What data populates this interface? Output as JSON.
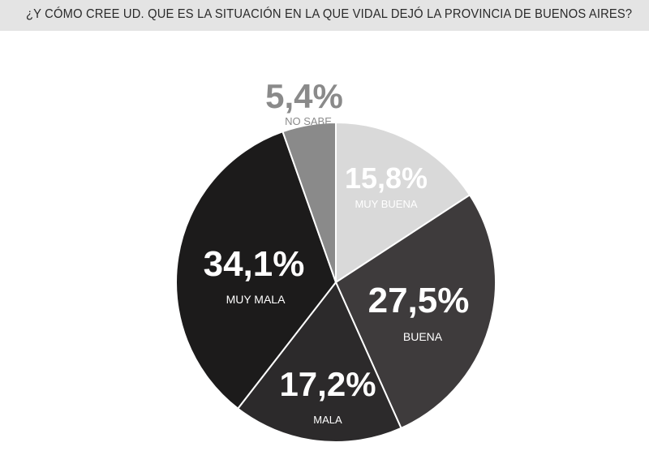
{
  "header": {
    "title": "¿Y CÓMO CREE UD. QUE ES LA SITUACIÓN EN LA QUE VIDAL DEJÓ LA PROVINCIA DE BUENOS AIRES?"
  },
  "chart_data": {
    "type": "pie",
    "title": "¿Y CÓMO CREE UD. QUE ES LA SITUACIÓN EN LA QUE VIDAL DEJÓ LA PROVINCIA DE BUENOS AIRES?",
    "slices": [
      {
        "label": "MUY BUENA",
        "value": 15.8,
        "value_text": "15,8%",
        "color": "#d9d9d9",
        "text_color": "#ffffff"
      },
      {
        "label": "BUENA",
        "value": 27.5,
        "value_text": "27,5%",
        "color": "#3e3b3c",
        "text_color": "#ffffff"
      },
      {
        "label": "MALA",
        "value": 17.2,
        "value_text": "17,2%",
        "color": "#2c2a2b",
        "text_color": "#ffffff"
      },
      {
        "label": "MUY MALA",
        "value": 34.1,
        "value_text": "34,1%",
        "color": "#1c1b1b",
        "text_color": "#ffffff"
      },
      {
        "label": "NO SABE",
        "value": 5.4,
        "value_text": "5,4%",
        "color": "#8a8a8a",
        "text_color": "#8a8a8a"
      }
    ],
    "start_angle": "top",
    "direction": "clockwise",
    "legend": "none"
  }
}
